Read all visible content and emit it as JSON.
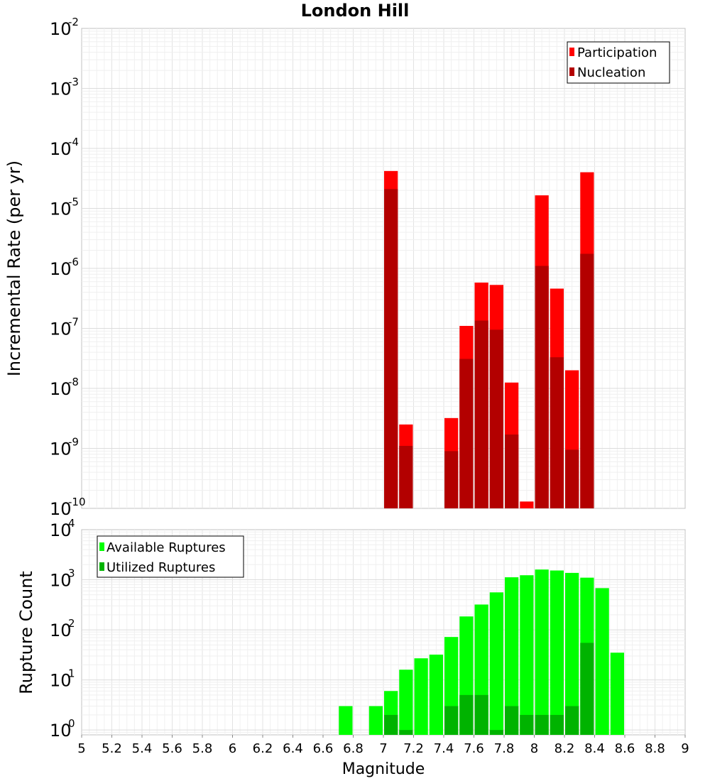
{
  "chart_data": [
    {
      "type": "bar",
      "title": "London Hill",
      "xlabel": "",
      "ylabel": "Incremental Rate (per yr)",
      "yscale": "log",
      "xlim": [
        5,
        9
      ],
      "ylim_exp": [
        -10,
        -2
      ],
      "y_tick_base": "10",
      "y_tick_exponents": [
        "-10",
        "-9",
        "-8",
        "-7",
        "-6",
        "-5",
        "-4",
        "-3",
        "-2"
      ],
      "bar_width": 0.1,
      "grid": true,
      "legend_position": "top-right",
      "series": [
        {
          "name": "Participation",
          "color": "#ff0000",
          "points": [
            {
              "x": 7.05,
              "y": 4.2e-05
            },
            {
              "x": 7.15,
              "y": 2.5e-09
            },
            {
              "x": 7.45,
              "y": 3.2e-09
            },
            {
              "x": 7.55,
              "y": 1.1e-07
            },
            {
              "x": 7.65,
              "y": 5.8e-07
            },
            {
              "x": 7.75,
              "y": 5.3e-07
            },
            {
              "x": 7.85,
              "y": 1.25e-08
            },
            {
              "x": 7.95,
              "y": 1.3e-10
            },
            {
              "x": 8.05,
              "y": 1.65e-05
            },
            {
              "x": 8.15,
              "y": 4.6e-07
            },
            {
              "x": 8.25,
              "y": 2e-08
            },
            {
              "x": 8.35,
              "y": 4e-05
            }
          ]
        },
        {
          "name": "Nucleation",
          "color": "#b30000",
          "points": [
            {
              "x": 7.05,
              "y": 2.1e-05
            },
            {
              "x": 7.15,
              "y": 1.1e-09
            },
            {
              "x": 7.45,
              "y": 9e-10
            },
            {
              "x": 7.55,
              "y": 3.1e-08
            },
            {
              "x": 7.65,
              "y": 1.35e-07
            },
            {
              "x": 7.75,
              "y": 9.5e-08
            },
            {
              "x": 7.85,
              "y": 1.7e-09
            },
            {
              "x": 8.05,
              "y": 1.1e-06
            },
            {
              "x": 8.15,
              "y": 3.3e-08
            },
            {
              "x": 8.25,
              "y": 9.5e-10
            },
            {
              "x": 8.35,
              "y": 1.75e-06
            }
          ]
        }
      ]
    },
    {
      "type": "bar",
      "title": "",
      "xlabel": "Magnitude",
      "ylabel": "Rupture Count",
      "yscale": "log",
      "xlim": [
        5,
        9
      ],
      "ylim": [
        0.8,
        10000
      ],
      "y_tick_base": "10",
      "y_tick_exponents": [
        "0",
        "1",
        "2",
        "3",
        "4"
      ],
      "x_ticks": [
        "5",
        "5.2",
        "5.4",
        "5.6",
        "5.8",
        "6",
        "6.2",
        "6.4",
        "6.6",
        "6.8",
        "7",
        "7.2",
        "7.4",
        "7.6",
        "7.8",
        "8",
        "8.2",
        "8.4",
        "8.6",
        "8.8",
        "9"
      ],
      "bar_width": 0.1,
      "grid": true,
      "legend_position": "top-left",
      "series": [
        {
          "name": "Available Ruptures",
          "color": "#00ff00",
          "points": [
            {
              "x": 6.75,
              "y": 3
            },
            {
              "x": 6.95,
              "y": 3
            },
            {
              "x": 7.05,
              "y": 6
            },
            {
              "x": 7.15,
              "y": 16
            },
            {
              "x": 7.25,
              "y": 27
            },
            {
              "x": 7.35,
              "y": 32
            },
            {
              "x": 7.45,
              "y": 72
            },
            {
              "x": 7.55,
              "y": 185
            },
            {
              "x": 7.65,
              "y": 320
            },
            {
              "x": 7.75,
              "y": 560
            },
            {
              "x": 7.85,
              "y": 1120
            },
            {
              "x": 7.95,
              "y": 1230
            },
            {
              "x": 8.05,
              "y": 1600
            },
            {
              "x": 8.15,
              "y": 1530
            },
            {
              "x": 8.25,
              "y": 1370
            },
            {
              "x": 8.35,
              "y": 1100
            },
            {
              "x": 8.45,
              "y": 680
            },
            {
              "x": 8.55,
              "y": 35
            }
          ]
        },
        {
          "name": "Utilized Ruptures",
          "color": "#00b300",
          "points": [
            {
              "x": 7.05,
              "y": 2
            },
            {
              "x": 7.15,
              "y": 1
            },
            {
              "x": 7.45,
              "y": 3
            },
            {
              "x": 7.55,
              "y": 5
            },
            {
              "x": 7.65,
              "y": 5
            },
            {
              "x": 7.75,
              "y": 1
            },
            {
              "x": 7.85,
              "y": 3
            },
            {
              "x": 7.95,
              "y": 2
            },
            {
              "x": 8.05,
              "y": 2
            },
            {
              "x": 8.15,
              "y": 2
            },
            {
              "x": 8.25,
              "y": 3
            },
            {
              "x": 8.35,
              "y": 55
            }
          ]
        }
      ]
    }
  ]
}
